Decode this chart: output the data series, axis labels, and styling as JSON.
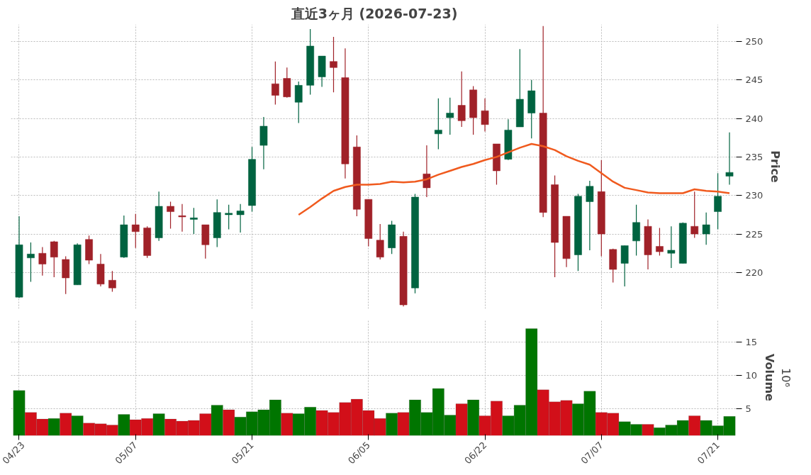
{
  "chart_data": [
    {
      "type": "candlestick",
      "title": "直近3ヶ月 (2026-07-23)",
      "ylabel": "Price",
      "categories": [
        null,
        null,
        null,
        null,
        null,
        null,
        null,
        null,
        null,
        null,
        null,
        null,
        null,
        null,
        null,
        null,
        null,
        null,
        null,
        null,
        null,
        null,
        null,
        null,
        null,
        null,
        null,
        null,
        null,
        null,
        null,
        null,
        null,
        null,
        null,
        null,
        null,
        null,
        null,
        null,
        null,
        null,
        null,
        null,
        null,
        null,
        null,
        null,
        null,
        null,
        null,
        null,
        null,
        null,
        null,
        null,
        null,
        null,
        null,
        null,
        null,
        null
      ],
      "ohlc": [
        [
          216.8,
          227.3,
          216.7,
          223.6
        ],
        [
          221.9,
          223.9,
          218.8,
          222.4
        ],
        [
          222.5,
          223.3,
          219.6,
          221.1
        ],
        [
          224.0,
          224.1,
          219.4,
          222.0
        ],
        [
          221.7,
          222.1,
          217.2,
          219.3
        ],
        [
          218.4,
          223.8,
          218.4,
          223.6
        ],
        [
          224.3,
          224.8,
          221.1,
          221.6
        ],
        [
          221.1,
          222.4,
          218.2,
          218.5
        ],
        [
          219.0,
          220.2,
          217.5,
          218.0
        ],
        [
          222.0,
          227.4,
          221.9,
          226.2
        ],
        [
          226.2,
          227.6,
          223.2,
          225.3
        ],
        [
          225.8,
          226.0,
          221.9,
          222.2
        ],
        [
          224.5,
          230.5,
          224.1,
          228.6
        ],
        [
          228.6,
          229.2,
          225.7,
          227.9
        ],
        [
          227.3,
          228.9,
          225.3,
          227.3
        ],
        [
          226.9,
          228.4,
          225.0,
          227.1
        ],
        [
          226.2,
          226.2,
          221.8,
          223.6
        ],
        [
          224.5,
          229.5,
          223.3,
          227.8
        ],
        [
          227.5,
          228.8,
          225.6,
          227.7
        ],
        [
          227.5,
          228.9,
          225.2,
          228.0
        ],
        [
          228.7,
          236.3,
          227.9,
          234.7
        ],
        [
          236.5,
          240.2,
          233.4,
          239.0
        ],
        [
          244.5,
          247.4,
          241.8,
          243.0
        ],
        [
          245.2,
          246.6,
          242.7,
          242.8
        ],
        [
          242.1,
          244.8,
          239.4,
          244.3
        ],
        [
          244.3,
          251.6,
          243.1,
          249.4
        ],
        [
          245.4,
          248.1,
          244.1,
          248.1
        ],
        [
          247.4,
          250.6,
          243.4,
          246.6
        ],
        [
          245.3,
          249.1,
          232.2,
          234.1
        ],
        [
          236.3,
          237.8,
          227.3,
          228.2
        ],
        [
          229.5,
          229.5,
          223.4,
          224.4
        ],
        [
          224.2,
          226.3,
          221.7,
          222.0
        ],
        [
          223.2,
          226.7,
          222.4,
          226.2
        ],
        [
          224.7,
          225.3,
          215.6,
          215.8
        ],
        [
          218.0,
          230.2,
          217.3,
          229.8
        ],
        [
          232.8,
          236.5,
          229.8,
          231.0
        ],
        [
          238.0,
          242.6,
          236.0,
          238.5
        ],
        [
          240.1,
          242.7,
          237.9,
          240.7
        ],
        [
          241.7,
          246.1,
          238.9,
          239.7
        ],
        [
          243.7,
          244.2,
          237.9,
          240.1
        ],
        [
          241.0,
          242.6,
          238.3,
          239.2
        ],
        [
          236.7,
          236.7,
          231.4,
          233.2
        ],
        [
          234.7,
          239.9,
          234.6,
          238.5
        ],
        [
          238.9,
          249.0,
          238.9,
          242.5
        ],
        [
          240.7,
          245.0,
          237.4,
          243.6
        ],
        [
          240.7,
          252.0,
          227.2,
          227.8
        ],
        [
          231.4,
          232.6,
          219.4,
          223.9
        ],
        [
          227.3,
          227.3,
          220.7,
          221.8
        ],
        [
          222.3,
          230.2,
          220.2,
          229.9
        ],
        [
          229.2,
          231.9,
          222.9,
          231.2
        ],
        [
          230.5,
          234.6,
          222.1,
          225.0
        ],
        [
          223.0,
          223.1,
          218.7,
          220.4
        ],
        [
          221.2,
          223.5,
          218.2,
          223.5
        ],
        [
          224.1,
          228.8,
          222.2,
          226.5
        ],
        [
          226.0,
          226.9,
          220.4,
          222.3
        ],
        [
          223.4,
          225.8,
          222.2,
          222.7
        ],
        [
          222.5,
          226.0,
          220.6,
          222.9
        ],
        [
          221.2,
          226.5,
          221.2,
          226.4
        ],
        [
          226.0,
          230.5,
          224.5,
          225.0
        ],
        [
          225.0,
          227.8,
          223.6,
          226.2
        ],
        [
          227.9,
          232.9,
          225.6,
          229.9
        ],
        [
          232.5,
          238.2,
          231.4,
          233.0
        ]
      ],
      "colors": [
        "#006340",
        "#006340",
        "#a02128",
        "#a02128",
        "#a02128",
        "#006340",
        "#a02128",
        "#a02128",
        "#a02128",
        "#006340",
        "#a02128",
        "#a02128",
        "#006340",
        "#a02128",
        "#a02128",
        "#006340",
        "#a02128",
        "#006340",
        "#006340",
        "#006340",
        "#006340",
        "#006340",
        "#a02128",
        "#a02128",
        "#006340",
        "#006340",
        "#006340",
        "#a02128",
        "#a02128",
        "#a02128",
        "#a02128",
        "#a02128",
        "#006340",
        "#a02128",
        "#006340",
        "#a02128",
        "#006340",
        "#006340",
        "#a02128",
        "#a02128",
        "#a02128",
        "#a02128",
        "#006340",
        "#006340",
        "#006340",
        "#a02128",
        "#a02128",
        "#a02128",
        "#006340",
        "#006340",
        "#a02128",
        "#a02128",
        "#006340",
        "#006340",
        "#a02128",
        "#a02128",
        "#006340",
        "#006340",
        "#a02128",
        "#006340",
        "#006340",
        "#006340"
      ],
      "series": [
        {
          "type": "line",
          "color": "#f05a1e",
          "values": [
            null,
            null,
            null,
            null,
            null,
            null,
            null,
            null,
            null,
            null,
            null,
            null,
            null,
            null,
            null,
            null,
            null,
            null,
            null,
            null,
            null,
            null,
            null,
            null,
            227.5,
            228.5,
            229.6,
            230.6,
            231.1,
            231.4,
            231.4,
            231.5,
            231.8,
            231.7,
            231.8,
            232.1,
            232.7,
            233.2,
            233.7,
            234.1,
            234.6,
            235.0,
            235.6,
            236.2,
            236.7,
            236.4,
            235.9,
            235.1,
            234.5,
            234.0,
            232.9,
            231.8,
            231.0,
            230.7,
            230.4,
            230.3,
            230.3,
            230.3,
            230.8,
            230.6,
            230.5,
            230.3
          ]
        }
      ],
      "ylim": [
        215.3,
        252.2
      ],
      "yticks": [
        220,
        225,
        230,
        235,
        240,
        245,
        250
      ],
      "grid": true,
      "tick_labels": "y"
    },
    {
      "type": "bar",
      "ylabel": "Volume",
      "annotations": [
        "10⁶"
      ],
      "categories": [
        "04/23",
        null,
        null,
        null,
        null,
        null,
        null,
        null,
        null,
        null,
        "05/07",
        null,
        null,
        null,
        null,
        null,
        null,
        null,
        null,
        null,
        "05/21",
        null,
        null,
        null,
        null,
        null,
        null,
        null,
        null,
        null,
        "06/05",
        null,
        null,
        null,
        null,
        null,
        null,
        null,
        null,
        null,
        "06/22",
        null,
        null,
        null,
        null,
        null,
        null,
        null,
        null,
        null,
        "07/07",
        null,
        null,
        null,
        null,
        null,
        null,
        null,
        null,
        null,
        "07/21",
        null
      ],
      "values": [
        7.7,
        4.4,
        3.4,
        3.5,
        4.3,
        3.9,
        2.8,
        2.7,
        2.5,
        4.1,
        3.3,
        3.5,
        4.2,
        3.4,
        3.1,
        3.2,
        4.2,
        5.5,
        4.8,
        3.7,
        4.5,
        4.8,
        6.3,
        4.3,
        4.2,
        5.2,
        4.7,
        4.4,
        5.9,
        6.4,
        4.7,
        3.5,
        4.3,
        4.4,
        6.3,
        4.4,
        8.0,
        4.0,
        5.7,
        6.3,
        3.9,
        6.1,
        3.9,
        5.5,
        17.0,
        7.8,
        6.0,
        6.2,
        5.7,
        7.6,
        4.4,
        4.3,
        3.0,
        2.6,
        2.6,
        2.1,
        2.5,
        3.2,
        3.9,
        3.2,
        2.4,
        3.8
      ],
      "colors": [
        "#007500",
        "#d20f19",
        "#d20f19",
        "#007500",
        "#d20f19",
        "#007500",
        "#d20f19",
        "#d20f19",
        "#d20f19",
        "#007500",
        "#d20f19",
        "#d20f19",
        "#007500",
        "#d20f19",
        "#d20f19",
        "#d20f19",
        "#d20f19",
        "#007500",
        "#d20f19",
        "#007500",
        "#007500",
        "#007500",
        "#007500",
        "#d20f19",
        "#007500",
        "#007500",
        "#d20f19",
        "#d20f19",
        "#d20f19",
        "#d20f19",
        "#d20f19",
        "#d20f19",
        "#007500",
        "#d20f19",
        "#007500",
        "#007500",
        "#007500",
        "#007500",
        "#d20f19",
        "#007500",
        "#d20f19",
        "#d20f19",
        "#007500",
        "#007500",
        "#007500",
        "#d20f19",
        "#d20f19",
        "#d20f19",
        "#007500",
        "#007500",
        "#d20f19",
        "#d20f19",
        "#007500",
        "#007500",
        "#d20f19",
        "#007500",
        "#007500",
        "#007500",
        "#d20f19",
        "#007500",
        "#007500",
        "#007500"
      ],
      "ylim": [
        0.9,
        18.4
      ],
      "yticks": [
        5,
        10,
        15
      ],
      "grid": true
    }
  ]
}
